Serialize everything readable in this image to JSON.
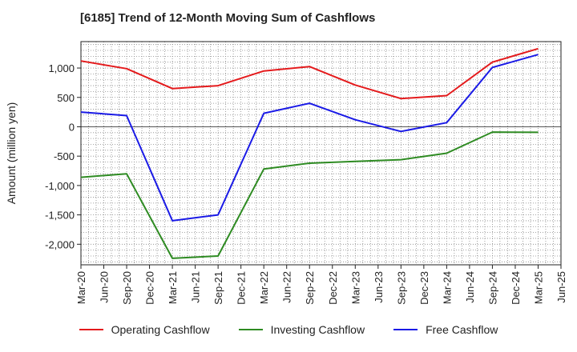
{
  "chart_data": {
    "type": "line",
    "title": "[6185]  Trend of 12-Month Moving Sum of Cashflows",
    "ylabel": "Amount (million yen)",
    "xlabel": "",
    "ylim": [
      -2350,
      1450
    ],
    "yticks": [
      {
        "value": 1000,
        "label": "1,000"
      },
      {
        "value": 500,
        "label": "500"
      },
      {
        "value": 0,
        "label": "0"
      },
      {
        "value": -500,
        "label": "-500"
      },
      {
        "value": -1000,
        "label": "-1,000"
      },
      {
        "value": -1500,
        "label": "-1,500"
      },
      {
        "value": -2000,
        "label": "-2,000"
      }
    ],
    "xticks": [
      "Mar-20",
      "Jun-20",
      "Sep-20",
      "Dec-20",
      "Mar-21",
      "Jun-21",
      "Sep-21",
      "Dec-21",
      "Mar-22",
      "Jun-22",
      "Sep-22",
      "Dec-22",
      "Mar-23",
      "Jun-23",
      "Sep-23",
      "Dec-23",
      "Mar-24",
      "Jun-24",
      "Sep-24",
      "Dec-24",
      "Mar-25",
      "Jun-25"
    ],
    "grid": true,
    "legend_position": "bottom",
    "series": [
      {
        "name": "Operating Cashflow",
        "color": "#e41a1c",
        "x": [
          "Mar-20",
          "Sep-20",
          "Mar-21",
          "Sep-21",
          "Mar-22",
          "Sep-22",
          "Mar-23",
          "Sep-23",
          "Mar-24",
          "Sep-24",
          "Mar-25"
        ],
        "values": [
          1120,
          990,
          650,
          700,
          950,
          1025,
          710,
          480,
          530,
          1100,
          1330
        ]
      },
      {
        "name": "Investing Cashflow",
        "color": "#2e8b22",
        "x": [
          "Mar-20",
          "Sep-20",
          "Mar-21",
          "Sep-21",
          "Mar-22",
          "Sep-22",
          "Mar-23",
          "Sep-23",
          "Mar-24",
          "Sep-24",
          "Mar-25"
        ],
        "values": [
          -860,
          -800,
          -2240,
          -2200,
          -720,
          -620,
          -590,
          -560,
          -450,
          -90,
          -95
        ]
      },
      {
        "name": "Free Cashflow",
        "color": "#1a1ae6",
        "x": [
          "Mar-20",
          "Sep-20",
          "Mar-21",
          "Sep-21",
          "Mar-22",
          "Sep-22",
          "Mar-23",
          "Sep-23",
          "Mar-24",
          "Sep-24",
          "Mar-25"
        ],
        "values": [
          250,
          190,
          -1600,
          -1500,
          230,
          400,
          120,
          -80,
          70,
          1010,
          1230
        ]
      }
    ]
  }
}
